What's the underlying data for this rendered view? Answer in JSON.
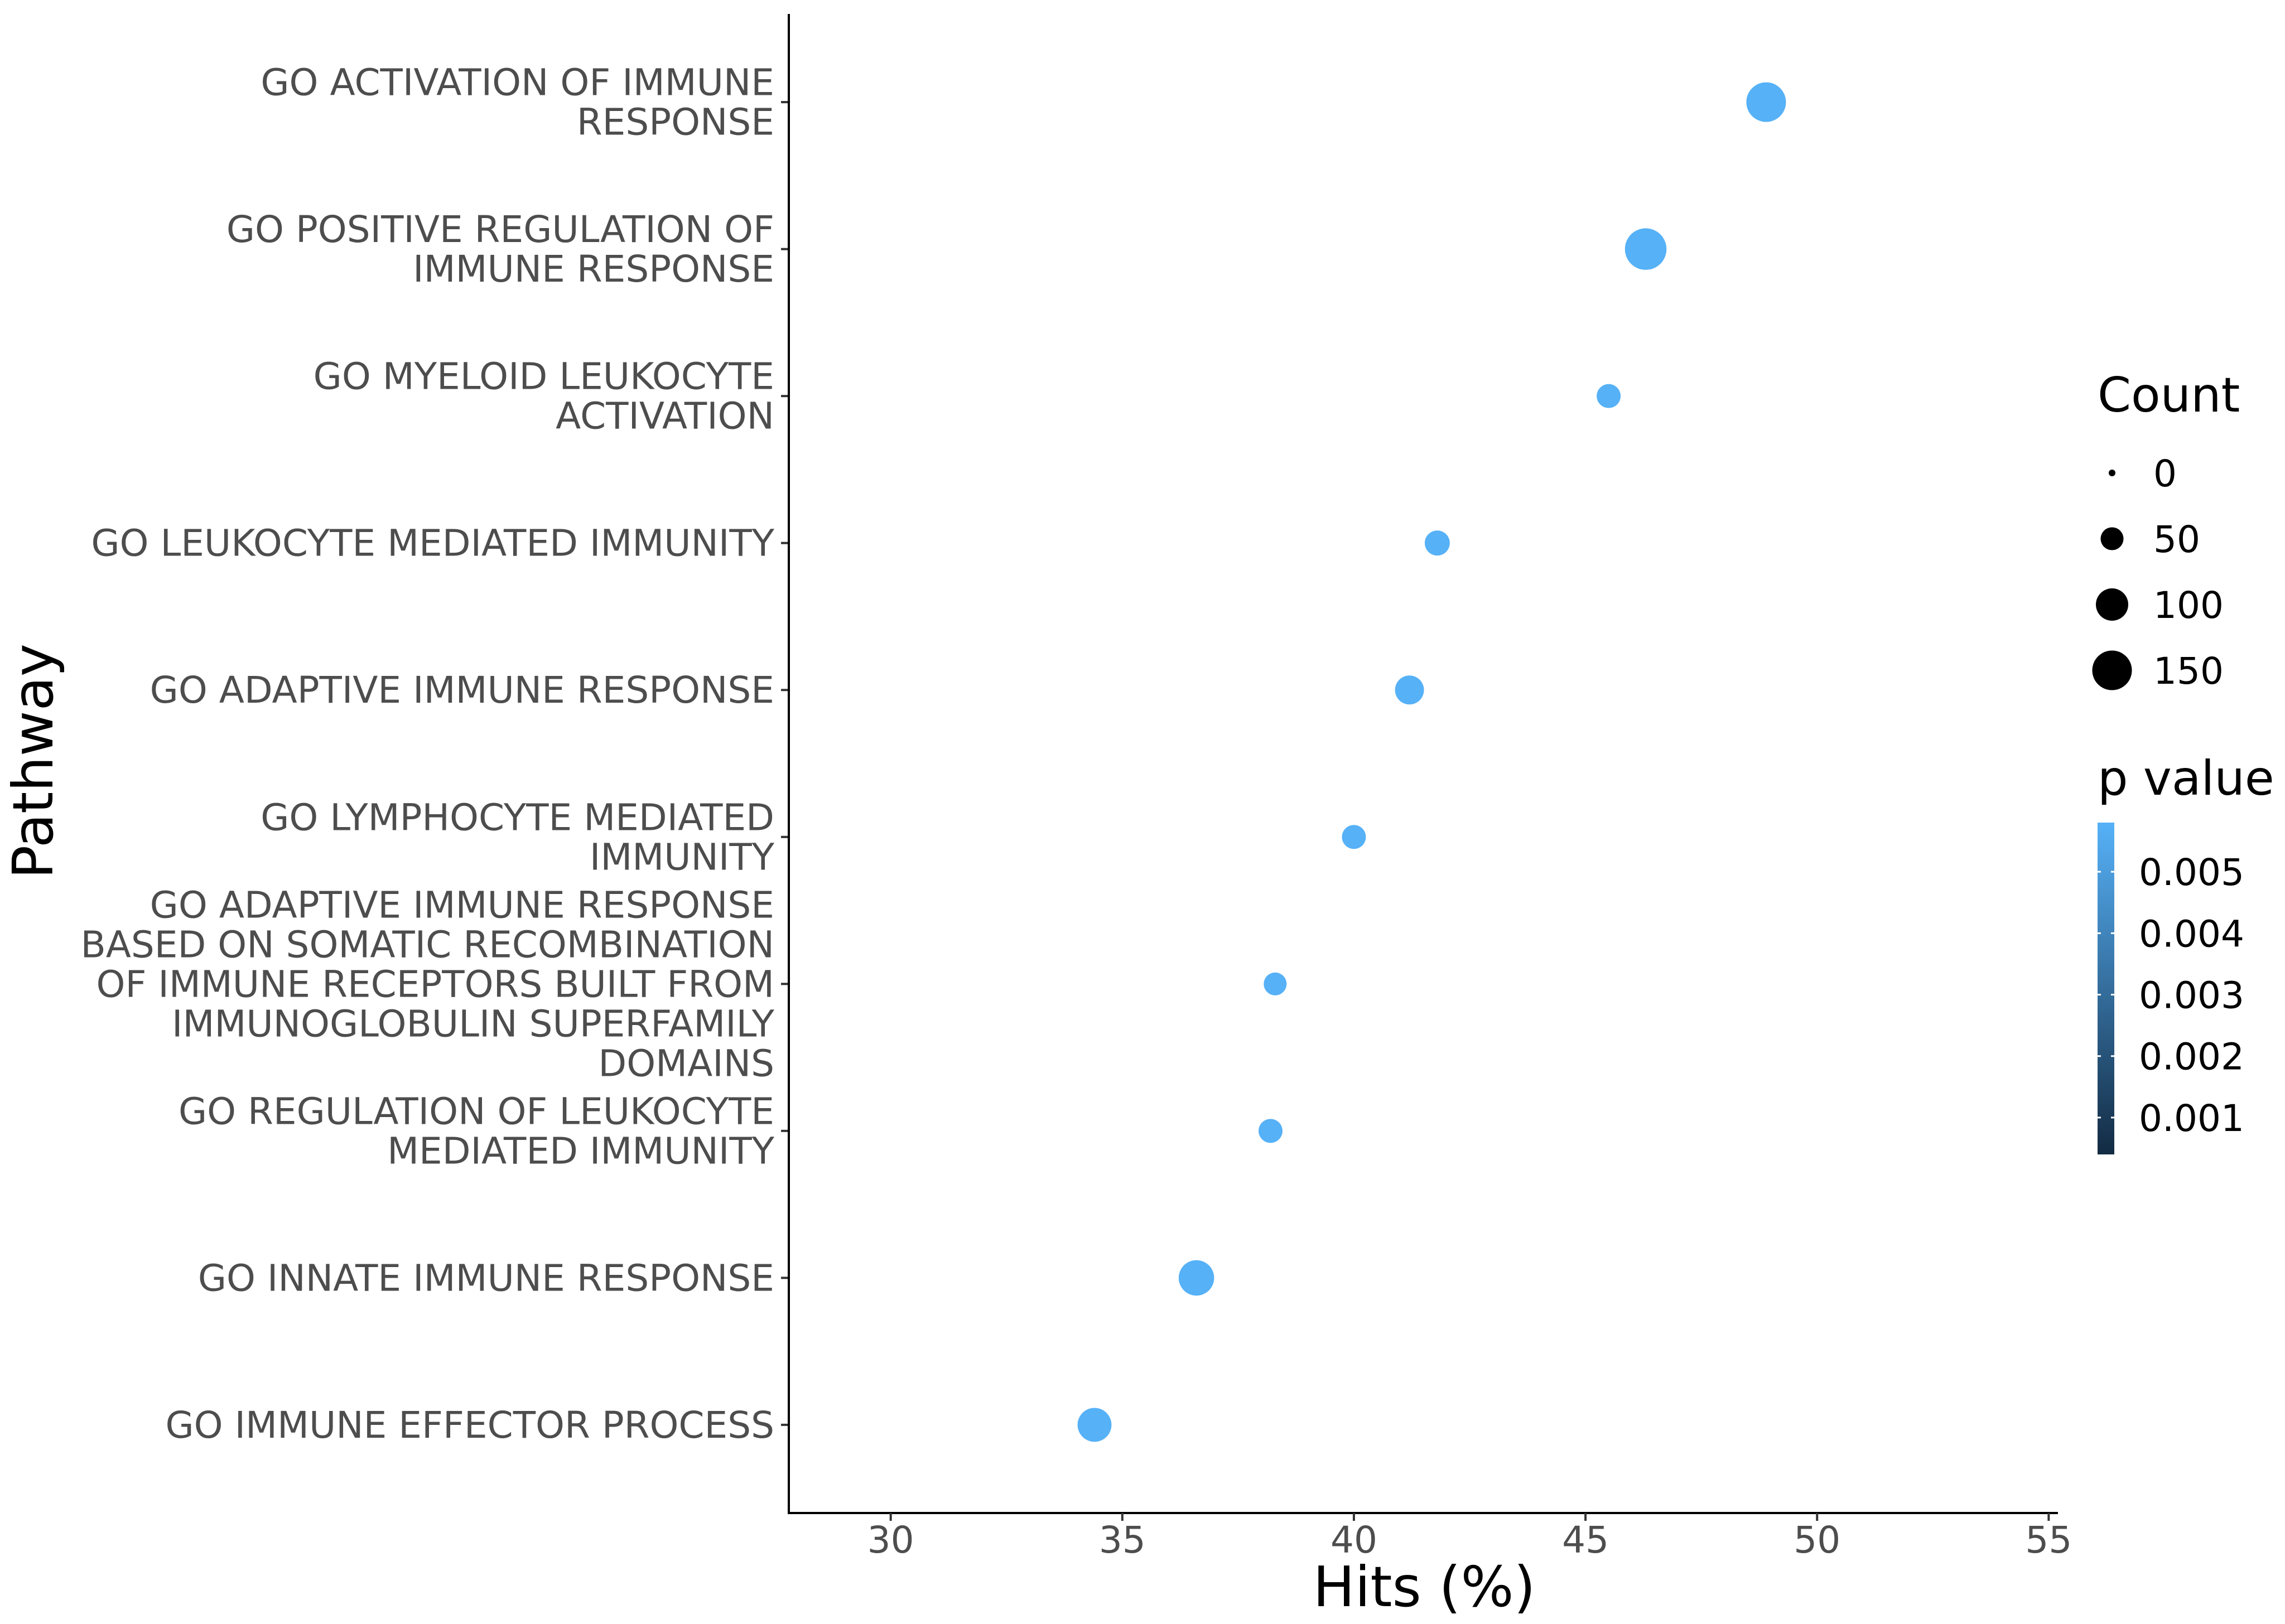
{
  "chart_data": {
    "type": "scatter",
    "xlabel": "Hits (%)",
    "ylabel": "Pathway",
    "xlim": [
      27.8,
      55.2
    ],
    "xticks": [
      30,
      35,
      40,
      45,
      50,
      55
    ],
    "grid": false,
    "legend_position": "right",
    "categories": [
      [
        "GO ACTIVATION OF IMMUNE",
        "RESPONSE"
      ],
      [
        "GO POSITIVE REGULATION OF",
        "IMMUNE RESPONSE"
      ],
      [
        "GO MYELOID LEUKOCYTE",
        "ACTIVATION"
      ],
      [
        "GO LEUKOCYTE MEDIATED IMMUNITY"
      ],
      [
        "GO ADAPTIVE IMMUNE RESPONSE"
      ],
      [
        "GO LYMPHOCYTE MEDIATED",
        "IMMUNITY"
      ],
      [
        "GO ADAPTIVE IMMUNE RESPONSE",
        "BASED ON SOMATIC RECOMBINATION",
        "OF IMMUNE RECEPTORS BUILT FROM",
        "IMMUNOGLOBULIN SUPERFAMILY",
        "DOMAINS"
      ],
      [
        "GO REGULATION OF LEUKOCYTE",
        "MEDIATED IMMUNITY"
      ],
      [
        "GO INNATE IMMUNE RESPONSE"
      ],
      [
        "GO IMMUNE EFFECTOR PROCESS"
      ]
    ],
    "points": [
      {
        "x": 48.9,
        "count": 150,
        "p": 0.0058
      },
      {
        "x": 46.3,
        "count": 165,
        "p": 0.0058
      },
      {
        "x": 45.5,
        "count": 55,
        "p": 0.0058
      },
      {
        "x": 41.8,
        "count": 60,
        "p": 0.0058
      },
      {
        "x": 41.2,
        "count": 80,
        "p": 0.0058
      },
      {
        "x": 40.0,
        "count": 55,
        "p": 0.0058
      },
      {
        "x": 38.3,
        "count": 50,
        "p": 0.0058
      },
      {
        "x": 38.2,
        "count": 55,
        "p": 0.0058
      },
      {
        "x": 36.6,
        "count": 120,
        "p": 0.0058
      },
      {
        "x": 34.4,
        "count": 110,
        "p": 0.0058
      }
    ],
    "size_legend": {
      "title": "Count",
      "values": [
        0,
        50,
        100,
        150
      ],
      "labels": [
        "0",
        "50",
        "100",
        "150"
      ]
    },
    "color_legend": {
      "title": "p value",
      "range": [
        0.0004,
        0.0058
      ],
      "ticks": [
        0.005,
        0.004,
        0.003,
        0.002,
        0.001
      ],
      "labels": [
        "0.005",
        "0.004",
        "0.003",
        "0.002",
        "0.001"
      ],
      "color_low": "#132b43",
      "color_high": "#56b1f7"
    }
  }
}
